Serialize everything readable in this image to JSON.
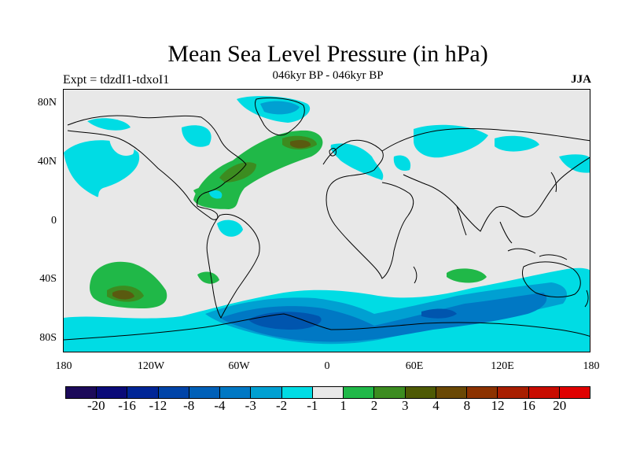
{
  "title": "Mean Sea Level Pressure (in hPa)",
  "subtitle": "046kyr BP - 046kyr BP",
  "left_label": "Expt = tdzdI1-tdxoI1",
  "right_label": "JJA",
  "lat_labels": [
    "80N",
    "40N",
    "0",
    "40S",
    "80S"
  ],
  "lon_labels": [
    "180",
    "120W",
    "60W",
    "0",
    "60E",
    "120E",
    "180"
  ],
  "colorbar": {
    "colors": [
      "#1c0a5a",
      "#0a0a78",
      "#002596",
      "#0044a8",
      "#0060b8",
      "#0078c4",
      "#00a0d2",
      "#00dce4",
      "#e8e8e8",
      "#20b848",
      "#3c8c20",
      "#4e5a04",
      "#6a4804",
      "#8c3200",
      "#a81e00",
      "#c80c00",
      "#e00000"
    ],
    "labels": [
      "-20",
      "-16",
      "-12",
      "-8",
      "-4",
      "-3",
      "-2",
      "-1",
      "1",
      "2",
      "3",
      "4",
      "8",
      "12",
      "16",
      "20"
    ]
  },
  "anomaly_colors": {
    "light_green": "#20b848",
    "dark_green": "#3c8c20",
    "brown": "#5a5a10",
    "cyan": "#00dce4",
    "light_blue": "#00a0d2",
    "blue": "#0078c4",
    "dark_blue": "#0055ae"
  }
}
